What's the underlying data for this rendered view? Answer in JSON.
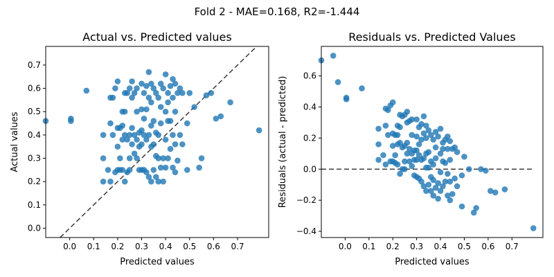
{
  "chart_data": {
    "title": "Fold 2 - MAE=0.168, R2=-1.444",
    "point_color": "#1f77b4",
    "panels": [
      {
        "type": "scatter",
        "title": "Actual vs. Predicted values",
        "xlabel": "Predicted values",
        "ylabel": "Actual values",
        "xlim": [
          -0.1,
          0.83
        ],
        "ylim": [
          -0.04,
          0.78
        ],
        "xticks": [
          "0.0",
          "0.1",
          "0.2",
          "0.3",
          "0.4",
          "0.5",
          "0.6",
          "0.7"
        ],
        "yticks": [
          "0.0",
          "0.1",
          "0.2",
          "0.3",
          "0.4",
          "0.5",
          "0.6",
          "0.7"
        ],
        "reference_line": "y = x (dashed)",
        "x": [
          -0.1,
          0.005,
          0.005,
          0.07,
          0.14,
          0.14,
          0.14,
          0.16,
          0.17,
          0.17,
          0.17,
          0.18,
          0.18,
          0.19,
          0.19,
          0.2,
          0.2,
          0.2,
          0.2,
          0.21,
          0.21,
          0.21,
          0.22,
          0.22,
          0.22,
          0.22,
          0.23,
          0.23,
          0.23,
          0.23,
          0.24,
          0.24,
          0.24,
          0.25,
          0.25,
          0.25,
          0.25,
          0.26,
          0.26,
          0.26,
          0.26,
          0.27,
          0.27,
          0.27,
          0.28,
          0.28,
          0.28,
          0.28,
          0.29,
          0.29,
          0.29,
          0.3,
          0.3,
          0.3,
          0.3,
          0.3,
          0.31,
          0.31,
          0.31,
          0.31,
          0.32,
          0.32,
          0.32,
          0.32,
          0.33,
          0.33,
          0.33,
          0.33,
          0.34,
          0.34,
          0.34,
          0.34,
          0.34,
          0.35,
          0.35,
          0.35,
          0.35,
          0.36,
          0.36,
          0.36,
          0.36,
          0.37,
          0.37,
          0.37,
          0.37,
          0.38,
          0.38,
          0.38,
          0.38,
          0.39,
          0.39,
          0.39,
          0.4,
          0.4,
          0.4,
          0.4,
          0.41,
          0.41,
          0.41,
          0.41,
          0.42,
          0.42,
          0.42,
          0.43,
          0.43,
          0.43,
          0.43,
          0.44,
          0.44,
          0.44,
          0.44,
          0.45,
          0.45,
          0.46,
          0.46,
          0.47,
          0.47,
          0.49,
          0.49,
          0.5,
          0.52,
          0.54,
          0.55,
          0.57,
          0.59,
          0.61,
          0.63,
          0.67,
          0.79
        ],
        "y": [
          0.46,
          0.46,
          0.47,
          0.59,
          0.2,
          0.3,
          0.4,
          0.25,
          0.2,
          0.45,
          0.56,
          0.4,
          0.56,
          0.24,
          0.6,
          0.25,
          0.35,
          0.43,
          0.63,
          0.25,
          0.3,
          0.43,
          0.25,
          0.38,
          0.44,
          0.5,
          0.2,
          0.4,
          0.5,
          0.58,
          0.24,
          0.38,
          0.58,
          0.25,
          0.3,
          0.4,
          0.6,
          0.36,
          0.43,
          0.56,
          0.63,
          0.32,
          0.4,
          0.58,
          0.3,
          0.38,
          0.5,
          0.6,
          0.25,
          0.35,
          0.41,
          0.25,
          0.36,
          0.42,
          0.51,
          0.62,
          0.25,
          0.4,
          0.47,
          0.58,
          0.24,
          0.38,
          0.51,
          0.61,
          0.22,
          0.4,
          0.56,
          0.67,
          0.2,
          0.35,
          0.44,
          0.54,
          0.62,
          0.25,
          0.36,
          0.46,
          0.6,
          0.22,
          0.31,
          0.41,
          0.58,
          0.2,
          0.3,
          0.4,
          0.56,
          0.26,
          0.45,
          0.52,
          0.62,
          0.2,
          0.3,
          0.6,
          0.26,
          0.38,
          0.5,
          0.66,
          0.3,
          0.46,
          0.54,
          0.58,
          0.34,
          0.46,
          0.61,
          0.26,
          0.4,
          0.56,
          0.64,
          0.24,
          0.36,
          0.5,
          0.62,
          0.29,
          0.58,
          0.4,
          0.6,
          0.36,
          0.58,
          0.25,
          0.45,
          0.58,
          0.52,
          0.26,
          0.3,
          0.57,
          0.58,
          0.47,
          0.48,
          0.54,
          0.42
        ]
      },
      {
        "type": "scatter",
        "title": "Residuals vs. Predicted Values",
        "xlabel": "Predicted values",
        "ylabel": "Residuals (actual - predicted)",
        "xlim": [
          -0.1,
          0.83
        ],
        "ylim": [
          -0.44,
          0.79
        ],
        "xticks": [
          "0.0",
          "0.1",
          "0.2",
          "0.3",
          "0.4",
          "0.5",
          "0.6",
          "0.7"
        ],
        "yticks": [
          "−0.4",
          "−0.2",
          "0.0",
          "0.2",
          "0.4",
          "0.6"
        ],
        "reference_line": "y = 0 (dashed)",
        "reference_x_range": [
          -0.1,
          0.79
        ],
        "x": [
          -0.1,
          -0.05,
          -0.03,
          0.005,
          0.005,
          0.07,
          0.14,
          0.14,
          0.14,
          0.16,
          0.17,
          0.17,
          0.17,
          0.18,
          0.18,
          0.19,
          0.19,
          0.2,
          0.2,
          0.2,
          0.2,
          0.21,
          0.21,
          0.21,
          0.22,
          0.22,
          0.22,
          0.22,
          0.23,
          0.23,
          0.23,
          0.23,
          0.24,
          0.24,
          0.24,
          0.25,
          0.25,
          0.25,
          0.25,
          0.26,
          0.26,
          0.26,
          0.26,
          0.27,
          0.27,
          0.27,
          0.28,
          0.28,
          0.28,
          0.28,
          0.29,
          0.29,
          0.29,
          0.3,
          0.3,
          0.3,
          0.3,
          0.3,
          0.31,
          0.31,
          0.31,
          0.31,
          0.32,
          0.32,
          0.32,
          0.32,
          0.33,
          0.33,
          0.33,
          0.33,
          0.34,
          0.34,
          0.34,
          0.34,
          0.34,
          0.35,
          0.35,
          0.35,
          0.35,
          0.36,
          0.36,
          0.36,
          0.36,
          0.37,
          0.37,
          0.37,
          0.37,
          0.38,
          0.38,
          0.38,
          0.38,
          0.39,
          0.39,
          0.39,
          0.4,
          0.4,
          0.4,
          0.4,
          0.41,
          0.41,
          0.41,
          0.41,
          0.42,
          0.42,
          0.42,
          0.43,
          0.43,
          0.43,
          0.43,
          0.44,
          0.44,
          0.44,
          0.44,
          0.45,
          0.45,
          0.46,
          0.46,
          0.47,
          0.47,
          0.49,
          0.49,
          0.5,
          0.52,
          0.54,
          0.55,
          0.57,
          0.59,
          0.61,
          0.63,
          0.67,
          0.79
        ],
        "y": [
          0.7,
          0.73,
          0.56,
          0.45,
          0.46,
          0.52,
          0.06,
          0.16,
          0.26,
          0.09,
          0.03,
          0.28,
          0.39,
          0.22,
          0.38,
          0.05,
          0.41,
          0.05,
          0.15,
          0.23,
          0.43,
          0.04,
          0.09,
          0.22,
          0.03,
          0.16,
          0.22,
          0.28,
          -0.03,
          0.17,
          0.27,
          0.35,
          0.0,
          0.14,
          0.34,
          0.0,
          0.05,
          0.15,
          0.35,
          0.1,
          0.17,
          0.3,
          0.37,
          0.05,
          0.13,
          0.31,
          0.02,
          0.1,
          0.22,
          0.32,
          -0.04,
          0.06,
          0.12,
          -0.05,
          0.06,
          0.12,
          0.21,
          0.32,
          -0.06,
          0.09,
          0.16,
          0.27,
          -0.08,
          0.06,
          0.19,
          0.29,
          -0.11,
          0.07,
          0.23,
          0.34,
          -0.14,
          0.01,
          0.1,
          0.2,
          0.28,
          -0.1,
          0.01,
          0.11,
          0.25,
          -0.14,
          -0.05,
          0.05,
          0.22,
          -0.17,
          -0.07,
          0.03,
          0.19,
          -0.12,
          0.07,
          0.14,
          0.24,
          -0.19,
          -0.09,
          0.21,
          -0.14,
          -0.02,
          0.1,
          0.26,
          -0.11,
          0.05,
          0.13,
          0.17,
          -0.08,
          0.04,
          0.19,
          -0.17,
          -0.03,
          0.13,
          0.21,
          -0.2,
          -0.08,
          0.06,
          0.18,
          -0.16,
          0.13,
          -0.06,
          0.14,
          -0.11,
          0.11,
          -0.24,
          -0.04,
          0.08,
          0.0,
          -0.28,
          -0.25,
          0.0,
          -0.01,
          -0.14,
          -0.15,
          -0.13,
          -0.38
        ]
      }
    ]
  }
}
